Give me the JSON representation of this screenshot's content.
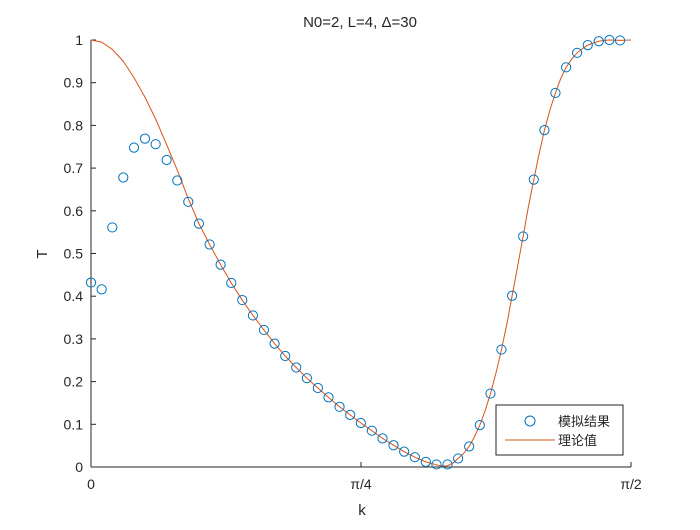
{
  "chart_data": {
    "type": "scatter",
    "title": "N0=2, L=4, Δ=30",
    "xlabel": "k",
    "ylabel": "T",
    "xlim": [
      0,
      1.5708
    ],
    "ylim": [
      0,
      1
    ],
    "x_ticks": [
      {
        "value": 0,
        "label": "0"
      },
      {
        "value": 0.7854,
        "label": "π/4"
      },
      {
        "value": 1.5708,
        "label": "π/2"
      }
    ],
    "y_ticks": [
      {
        "value": 0,
        "label": "0"
      },
      {
        "value": 0.1,
        "label": "0.1"
      },
      {
        "value": 0.2,
        "label": "0.2"
      },
      {
        "value": 0.3,
        "label": "0.3"
      },
      {
        "value": 0.4,
        "label": "0.4"
      },
      {
        "value": 0.5,
        "label": "0.5"
      },
      {
        "value": 0.6,
        "label": "0.6"
      },
      {
        "value": 0.7,
        "label": "0.7"
      },
      {
        "value": 0.8,
        "label": "0.8"
      },
      {
        "value": 0.9,
        "label": "0.9"
      },
      {
        "value": 1,
        "label": "1"
      }
    ],
    "grid": false,
    "legend_position": "bottom-right",
    "series": [
      {
        "name": "模拟结果",
        "kind": "scatter",
        "marker": "open-circle",
        "color": "#0072BD",
        "points": [
          [
            0.0,
            0.432
          ],
          [
            0.031,
            0.416
          ],
          [
            0.062,
            0.561
          ],
          [
            0.094,
            0.678
          ],
          [
            0.125,
            0.748
          ],
          [
            0.157,
            0.769
          ],
          [
            0.188,
            0.756
          ],
          [
            0.22,
            0.719
          ],
          [
            0.251,
            0.671
          ],
          [
            0.283,
            0.621
          ],
          [
            0.314,
            0.57
          ],
          [
            0.345,
            0.521
          ],
          [
            0.377,
            0.474
          ],
          [
            0.408,
            0.431
          ],
          [
            0.44,
            0.391
          ],
          [
            0.471,
            0.355
          ],
          [
            0.503,
            0.321
          ],
          [
            0.534,
            0.289
          ],
          [
            0.565,
            0.26
          ],
          [
            0.597,
            0.233
          ],
          [
            0.628,
            0.208
          ],
          [
            0.66,
            0.185
          ],
          [
            0.691,
            0.163
          ],
          [
            0.723,
            0.141
          ],
          [
            0.754,
            0.122
          ],
          [
            0.785,
            0.103
          ],
          [
            0.817,
            0.085
          ],
          [
            0.848,
            0.067
          ],
          [
            0.88,
            0.051
          ],
          [
            0.911,
            0.036
          ],
          [
            0.942,
            0.023
          ],
          [
            0.974,
            0.012
          ],
          [
            1.005,
            0.006
          ],
          [
            1.037,
            0.006
          ],
          [
            1.068,
            0.02
          ],
          [
            1.1,
            0.048
          ],
          [
            1.131,
            0.098
          ],
          [
            1.162,
            0.172
          ],
          [
            1.194,
            0.275
          ],
          [
            1.225,
            0.401
          ],
          [
            1.257,
            0.54
          ],
          [
            1.288,
            0.673
          ],
          [
            1.319,
            0.789
          ],
          [
            1.351,
            0.876
          ],
          [
            1.382,
            0.936
          ],
          [
            1.414,
            0.97
          ],
          [
            1.445,
            0.988
          ],
          [
            1.477,
            0.997
          ],
          [
            1.508,
            1.0
          ],
          [
            1.539,
            0.999
          ]
        ]
      },
      {
        "name": "理论值",
        "kind": "line",
        "color": "#D95319",
        "points": [
          [
            0.0,
            1.0
          ],
          [
            0.031,
            0.995
          ],
          [
            0.062,
            0.978
          ],
          [
            0.094,
            0.95
          ],
          [
            0.125,
            0.912
          ],
          [
            0.157,
            0.866
          ],
          [
            0.188,
            0.815
          ],
          [
            0.22,
            0.755
          ],
          [
            0.251,
            0.695
          ],
          [
            0.283,
            0.628
          ],
          [
            0.314,
            0.57
          ],
          [
            0.345,
            0.521
          ],
          [
            0.377,
            0.474
          ],
          [
            0.408,
            0.431
          ],
          [
            0.44,
            0.391
          ],
          [
            0.471,
            0.355
          ],
          [
            0.503,
            0.321
          ],
          [
            0.534,
            0.289
          ],
          [
            0.565,
            0.26
          ],
          [
            0.597,
            0.233
          ],
          [
            0.628,
            0.208
          ],
          [
            0.66,
            0.185
          ],
          [
            0.691,
            0.163
          ],
          [
            0.723,
            0.141
          ],
          [
            0.754,
            0.122
          ],
          [
            0.785,
            0.103
          ],
          [
            0.817,
            0.085
          ],
          [
            0.848,
            0.067
          ],
          [
            0.88,
            0.051
          ],
          [
            0.911,
            0.036
          ],
          [
            0.942,
            0.023
          ],
          [
            0.974,
            0.012
          ],
          [
            1.005,
            0.005
          ],
          [
            1.02,
            0.002
          ],
          [
            1.037,
            0.003
          ],
          [
            1.052,
            0.009
          ],
          [
            1.068,
            0.02
          ],
          [
            1.084,
            0.032
          ],
          [
            1.1,
            0.048
          ],
          [
            1.115,
            0.07
          ],
          [
            1.131,
            0.098
          ],
          [
            1.147,
            0.133
          ],
          [
            1.162,
            0.172
          ],
          [
            1.178,
            0.22
          ],
          [
            1.194,
            0.275
          ],
          [
            1.21,
            0.336
          ],
          [
            1.225,
            0.401
          ],
          [
            1.241,
            0.47
          ],
          [
            1.257,
            0.54
          ],
          [
            1.272,
            0.608
          ],
          [
            1.288,
            0.673
          ],
          [
            1.304,
            0.735
          ],
          [
            1.319,
            0.789
          ],
          [
            1.335,
            0.836
          ],
          [
            1.351,
            0.876
          ],
          [
            1.366,
            0.909
          ],
          [
            1.382,
            0.936
          ],
          [
            1.398,
            0.955
          ],
          [
            1.414,
            0.97
          ],
          [
            1.43,
            0.98
          ],
          [
            1.445,
            0.988
          ],
          [
            1.461,
            0.993
          ],
          [
            1.477,
            0.997
          ],
          [
            1.492,
            0.999
          ],
          [
            1.508,
            1.0
          ],
          [
            1.539,
            0.999
          ],
          [
            1.5708,
            1.0
          ]
        ]
      }
    ]
  }
}
